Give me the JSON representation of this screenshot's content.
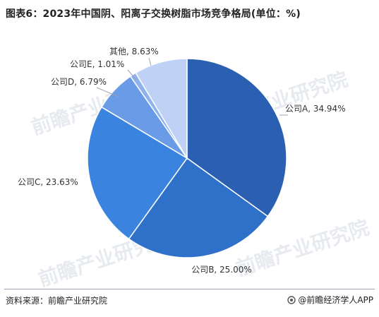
{
  "title": "图表6：2023年中国阴、阳离子交换树脂市场竞争格局(单位：%)",
  "footer": {
    "source": "资料来源：前瞻产业研究院",
    "brand": "@前瞻经济学人APP"
  },
  "watermark": "前瞻产业研究院",
  "colors": {
    "slice_a": "#2b5fb2",
    "slice_b": "#2f70c8",
    "slice_c": "#3a83df",
    "slice_d": "#6a9be6",
    "slice_e": "#8eb2ee",
    "slice_other": "#bfd2f6",
    "leader": "#9aa3b5"
  },
  "chart_data": {
    "type": "pie",
    "title": "图表6：2023年中国阴、阳离子交换树脂市场竞争格局(单位：%)",
    "categories": [
      "公司A",
      "公司B",
      "公司C",
      "公司D",
      "公司E",
      "其他"
    ],
    "values": [
      34.94,
      25.0,
      23.63,
      6.79,
      1.01,
      8.63
    ],
    "labels": [
      "公司A, 34.94%",
      "公司B, 25.00%",
      "公司C, 23.63%",
      "公司D, 6.79%",
      "公司E, 1.01%",
      "其他, 8.63%"
    ],
    "unit": "%",
    "legend": "none"
  }
}
